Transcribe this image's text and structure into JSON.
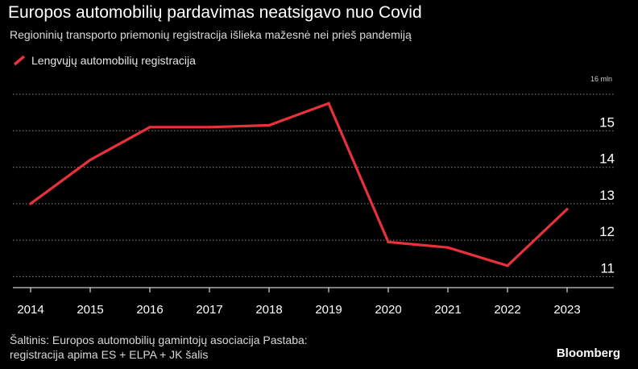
{
  "header": {
    "title": "Europos automobilių pardavimas neatsigavo nuo Covid",
    "subtitle": "Regioninių transporto priemonių registracija išlieka mažesnė nei prieš pandemiją"
  },
  "legend": {
    "label": "Lengvųjų automobilių registracija",
    "color": "#e8313a"
  },
  "chart_data": {
    "type": "line",
    "title": "Europos automobilių pardavimas neatsigavo nuo Covid",
    "subtitle": "Regioninių transporto priemonių registracija išlieka mažesnė nei prieš pandemiją",
    "x": [
      "2014",
      "2015",
      "2016",
      "2017",
      "2018",
      "2019",
      "2020",
      "2021",
      "2022",
      "2023"
    ],
    "series": [
      {
        "name": "Lengvųjų automobilių registracija",
        "color": "#e8313a",
        "values": [
          13.0,
          14.2,
          15.1,
          15.1,
          15.15,
          15.75,
          11.95,
          11.8,
          11.3,
          12.85
        ]
      }
    ],
    "ylim": [
      10.7,
      16.0
    ],
    "yticks": [
      11,
      12,
      13,
      14,
      15
    ],
    "ytick_labels": [
      "11",
      "12",
      "13",
      "14",
      "15"
    ],
    "y_top_label": "16 mln",
    "grid": true,
    "xlabel": "",
    "ylabel": ""
  },
  "footer": {
    "source_line1": "Šaltinis: Europos automobilių gamintojų asociacija Pastaba:",
    "source_line2": "registracija apima ES + ELPA + JK šalis",
    "brand": "Bloomberg"
  }
}
